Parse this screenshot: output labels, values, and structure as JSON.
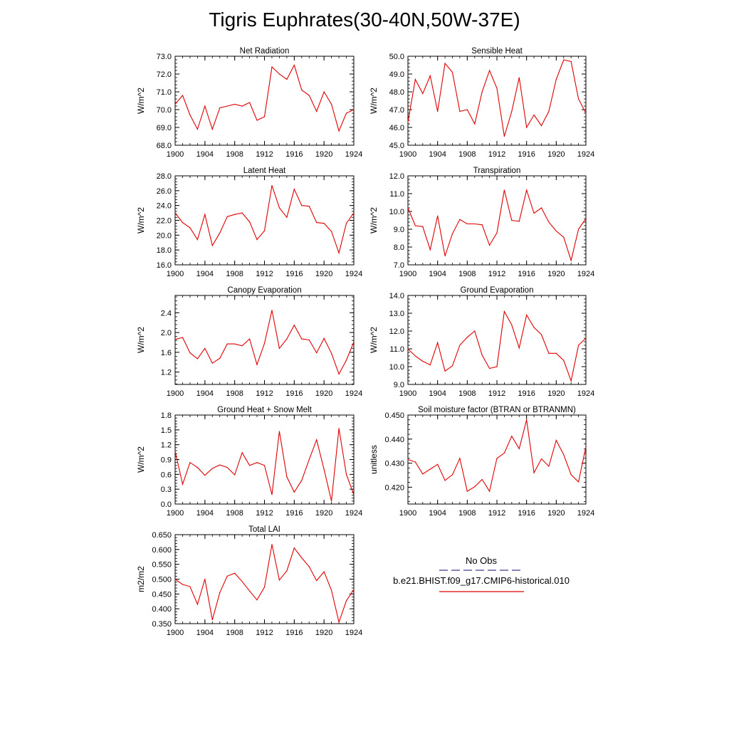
{
  "title": "Tigris Euphrates(30-40N,50W-37E)",
  "colors": {
    "model": "#e00000",
    "obs": "#3c3c8c",
    "axis": "#000000"
  },
  "legend": {
    "obs_label": "No Obs",
    "model_label": "b.e21.BHIST.f09_g17.CMIP6-historical.010"
  },
  "chart_data": [
    {
      "type": "line",
      "title": "Net Radiation",
      "ylabel": "W/m^2",
      "xlim": [
        1900,
        1924
      ],
      "ylim": [
        68.0,
        73.0
      ],
      "xticks": [
        1900,
        1904,
        1908,
        1912,
        1916,
        1920,
        1924
      ],
      "yticks": [
        "68.0",
        "69.0",
        "70.0",
        "71.0",
        "72.0",
        "73.0"
      ],
      "x": [
        1900,
        1901,
        1902,
        1903,
        1904,
        1905,
        1906,
        1907,
        1908,
        1909,
        1910,
        1911,
        1912,
        1913,
        1914,
        1915,
        1916,
        1917,
        1918,
        1919,
        1920,
        1921,
        1922,
        1923,
        1924
      ],
      "series": [
        {
          "name": "b.e21.BHIST.f09_g17.CMIP6-historical.010",
          "values": [
            70.3,
            70.8,
            69.7,
            68.9,
            70.2,
            68.9,
            70.1,
            70.2,
            70.3,
            70.2,
            70.4,
            69.4,
            69.6,
            72.4,
            72.0,
            71.7,
            72.5,
            71.1,
            70.8,
            69.9,
            71.0,
            70.3,
            68.8,
            69.8,
            70.0
          ]
        }
      ]
    },
    {
      "type": "line",
      "title": "Sensible Heat",
      "ylabel": "W/m^2",
      "xlim": [
        1900,
        1924
      ],
      "ylim": [
        45.0,
        50.0
      ],
      "xticks": [
        1900,
        1904,
        1908,
        1912,
        1916,
        1920,
        1924
      ],
      "yticks": [
        "45.0",
        "46.0",
        "47.0",
        "48.0",
        "49.0",
        "50.0"
      ],
      "x": [
        1900,
        1901,
        1902,
        1903,
        1904,
        1905,
        1906,
        1907,
        1908,
        1909,
        1910,
        1911,
        1912,
        1913,
        1914,
        1915,
        1916,
        1917,
        1918,
        1919,
        1920,
        1921,
        1922,
        1923,
        1924
      ],
      "series": [
        {
          "name": "b.e21.BHIST.f09_g17.CMIP6-historical.010",
          "values": [
            46.3,
            48.7,
            47.9,
            48.9,
            46.9,
            49.6,
            49.1,
            46.9,
            47.0,
            46.2,
            48.0,
            49.2,
            48.2,
            45.5,
            46.9,
            48.8,
            46.0,
            46.7,
            46.1,
            46.9,
            48.7,
            49.8,
            49.7,
            47.6,
            46.8
          ]
        }
      ]
    },
    {
      "type": "line",
      "title": "Latent Heat",
      "ylabel": "W/m^2",
      "xlim": [
        1900,
        1924
      ],
      "ylim": [
        16.0,
        28.0
      ],
      "xticks": [
        1900,
        1904,
        1908,
        1912,
        1916,
        1920,
        1924
      ],
      "yticks": [
        "16.0",
        "18.0",
        "20.0",
        "22.0",
        "24.0",
        "26.0",
        "28.0"
      ],
      "x": [
        1900,
        1901,
        1902,
        1903,
        1904,
        1905,
        1906,
        1907,
        1908,
        1909,
        1910,
        1911,
        1912,
        1913,
        1914,
        1915,
        1916,
        1917,
        1918,
        1919,
        1920,
        1921,
        1922,
        1923,
        1924
      ],
      "series": [
        {
          "name": "b.e21.BHIST.f09_g17.CMIP6-historical.010",
          "values": [
            23.0,
            21.7,
            21.0,
            19.4,
            22.8,
            18.6,
            20.3,
            22.5,
            22.8,
            23.0,
            21.8,
            19.4,
            20.6,
            26.7,
            23.7,
            22.4,
            26.2,
            24.0,
            23.9,
            21.7,
            21.6,
            20.5,
            17.6,
            21.6,
            23.0
          ]
        }
      ]
    },
    {
      "type": "line",
      "title": "Transpiration",
      "ylabel": "W/m^2",
      "xlim": [
        1900,
        1924
      ],
      "ylim": [
        7.0,
        12.0
      ],
      "xticks": [
        1900,
        1904,
        1908,
        1912,
        1916,
        1920,
        1924
      ],
      "yticks": [
        "7.0",
        "8.0",
        "9.0",
        "10.0",
        "11.0",
        "12.0"
      ],
      "x": [
        1900,
        1901,
        1902,
        1903,
        1904,
        1905,
        1906,
        1907,
        1908,
        1909,
        1910,
        1911,
        1912,
        1913,
        1914,
        1915,
        1916,
        1917,
        1918,
        1919,
        1920,
        1921,
        1922,
        1923,
        1924
      ],
      "series": [
        {
          "name": "b.e21.BHIST.f09_g17.CMIP6-historical.010",
          "values": [
            10.2,
            9.2,
            9.15,
            7.85,
            9.75,
            7.5,
            8.75,
            9.55,
            9.3,
            9.3,
            9.25,
            8.1,
            8.8,
            11.2,
            9.5,
            9.45,
            11.2,
            9.9,
            10.2,
            9.4,
            8.9,
            8.55,
            7.25,
            9.0,
            9.6
          ]
        }
      ]
    },
    {
      "type": "line",
      "title": "Canopy Evaporation",
      "ylabel": "W/m^2",
      "xlim": [
        1900,
        1924
      ],
      "ylim": [
        0.95,
        2.75
      ],
      "xticks": [
        1900,
        1904,
        1908,
        1912,
        1916,
        1920,
        1924
      ],
      "yticks": [
        "1.2",
        "1.6",
        "2.0",
        "2.4"
      ],
      "x": [
        1900,
        1901,
        1902,
        1903,
        1904,
        1905,
        1906,
        1907,
        1908,
        1909,
        1910,
        1911,
        1912,
        1913,
        1914,
        1915,
        1916,
        1917,
        1918,
        1919,
        1920,
        1921,
        1922,
        1923,
        1924
      ],
      "series": [
        {
          "name": "b.e21.BHIST.f09_g17.CMIP6-historical.010",
          "values": [
            1.86,
            1.9,
            1.59,
            1.47,
            1.68,
            1.38,
            1.48,
            1.77,
            1.77,
            1.73,
            1.87,
            1.35,
            1.78,
            2.45,
            1.68,
            1.87,
            2.15,
            1.87,
            1.85,
            1.59,
            1.88,
            1.58,
            1.16,
            1.44,
            1.81
          ]
        }
      ]
    },
    {
      "type": "line",
      "title": "Ground Evaporation",
      "ylabel": "W/m^2",
      "xlim": [
        1900,
        1924
      ],
      "ylim": [
        9.0,
        14.0
      ],
      "xticks": [
        1900,
        1904,
        1908,
        1912,
        1916,
        1920,
        1924
      ],
      "yticks": [
        "9.0",
        "10.0",
        "11.0",
        "12.0",
        "13.0",
        "14.0"
      ],
      "x": [
        1900,
        1901,
        1902,
        1903,
        1904,
        1905,
        1906,
        1907,
        1908,
        1909,
        1910,
        1911,
        1912,
        1913,
        1914,
        1915,
        1916,
        1917,
        1918,
        1919,
        1920,
        1921,
        1922,
        1923,
        1924
      ],
      "series": [
        {
          "name": "b.e21.BHIST.f09_g17.CMIP6-historical.010",
          "values": [
            11.0,
            10.6,
            10.3,
            10.1,
            11.35,
            9.75,
            10.05,
            11.2,
            11.65,
            12.0,
            10.65,
            9.9,
            10.0,
            13.1,
            12.35,
            11.05,
            12.9,
            12.2,
            11.8,
            10.75,
            10.75,
            10.35,
            9.2,
            11.2,
            11.6
          ]
        }
      ]
    },
    {
      "type": "line",
      "title": "Ground Heat + Snow Melt",
      "ylabel": "W/m^2",
      "xlim": [
        1900,
        1924
      ],
      "ylim": [
        0.0,
        1.8
      ],
      "xticks": [
        1900,
        1904,
        1908,
        1912,
        1916,
        1920,
        1924
      ],
      "yticks": [
        "0.0",
        "0.3",
        "0.6",
        "0.9",
        "1.2",
        "1.5",
        "1.8"
      ],
      "x": [
        1900,
        1901,
        1902,
        1903,
        1904,
        1905,
        1906,
        1907,
        1908,
        1909,
        1910,
        1911,
        1912,
        1913,
        1914,
        1915,
        1916,
        1917,
        1918,
        1919,
        1920,
        1921,
        1922,
        1923,
        1924
      ],
      "series": [
        {
          "name": "b.e21.BHIST.f09_g17.CMIP6-historical.010",
          "values": [
            1.07,
            0.4,
            0.84,
            0.74,
            0.58,
            0.72,
            0.79,
            0.74,
            0.59,
            1.04,
            0.78,
            0.84,
            0.78,
            0.19,
            1.47,
            0.55,
            0.24,
            0.48,
            0.9,
            1.3,
            0.7,
            0.06,
            1.53,
            0.6,
            0.19
          ]
        }
      ]
    },
    {
      "type": "line",
      "title": "Soil moisture factor (BTRAN or BTRANMN)",
      "ylabel": "unitless",
      "xlim": [
        1900,
        1924
      ],
      "ylim": [
        0.413,
        0.45
      ],
      "xticks": [
        1900,
        1904,
        1908,
        1912,
        1916,
        1920,
        1924
      ],
      "yticks": [
        "0.420",
        "0.430",
        "0.440",
        "0.450"
      ],
      "x": [
        1900,
        1901,
        1902,
        1903,
        1904,
        1905,
        1906,
        1907,
        1908,
        1909,
        1910,
        1911,
        1912,
        1913,
        1914,
        1915,
        1916,
        1917,
        1918,
        1919,
        1920,
        1921,
        1922,
        1923,
        1924
      ],
      "series": [
        {
          "name": "b.e21.BHIST.f09_g17.CMIP6-historical.010",
          "values": [
            0.4315,
            0.4305,
            0.4255,
            0.4275,
            0.4295,
            0.4228,
            0.4252,
            0.432,
            0.4183,
            0.4202,
            0.4232,
            0.4183,
            0.432,
            0.4342,
            0.4412,
            0.436,
            0.448,
            0.426,
            0.4318,
            0.4287,
            0.4395,
            0.4335,
            0.4252,
            0.4222,
            0.4368
          ]
        }
      ]
    },
    {
      "type": "line",
      "title": "Total LAI",
      "ylabel": "m2/m2",
      "xlim": [
        1900,
        1924
      ],
      "ylim": [
        0.35,
        0.65
      ],
      "xticks": [
        1900,
        1904,
        1908,
        1912,
        1916,
        1920,
        1924
      ],
      "yticks": [
        "0.350",
        "0.400",
        "0.450",
        "0.500",
        "0.550",
        "0.600",
        "0.650"
      ],
      "x": [
        1900,
        1901,
        1902,
        1903,
        1904,
        1905,
        1906,
        1907,
        1908,
        1909,
        1910,
        1911,
        1912,
        1913,
        1914,
        1915,
        1916,
        1917,
        1918,
        1919,
        1920,
        1921,
        1922,
        1923,
        1924
      ],
      "series": [
        {
          "name": "b.e21.BHIST.f09_g17.CMIP6-historical.010",
          "values": [
            0.5,
            0.482,
            0.475,
            0.415,
            0.5,
            0.363,
            0.455,
            0.51,
            0.52,
            0.492,
            0.46,
            0.43,
            0.473,
            0.617,
            0.497,
            0.528,
            0.605,
            0.572,
            0.542,
            0.495,
            0.525,
            0.462,
            0.355,
            0.427,
            0.465
          ]
        }
      ]
    }
  ]
}
